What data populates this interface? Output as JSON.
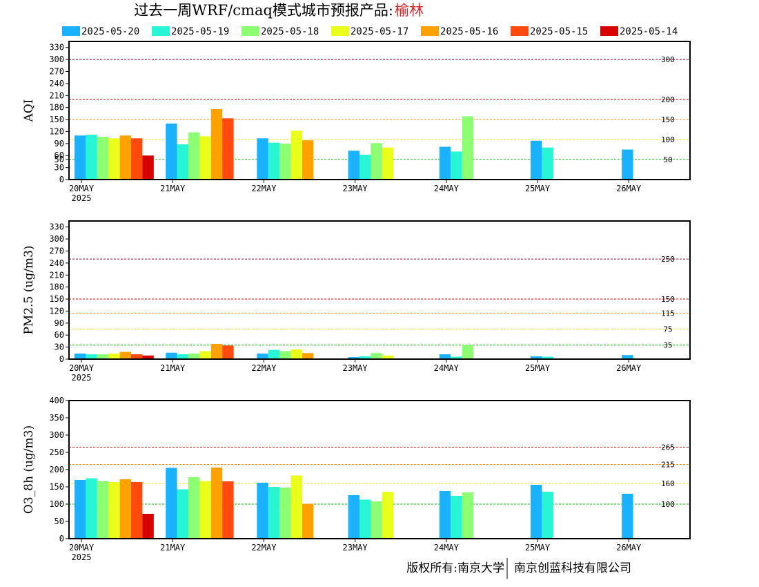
{
  "header": {
    "title": "过去一周WRF/cmaq模式城市预报产品:",
    "city": "榆林"
  },
  "footer": {
    "left": "版权所有:南京大学",
    "right": "南京创蓝科技有限公司"
  },
  "legend": [
    {
      "label": "2025-05-20",
      "color": "#1ab2ff"
    },
    {
      "label": "2025-05-19",
      "color": "#26f5d6"
    },
    {
      "label": "2025-05-18",
      "color": "#8cff72"
    },
    {
      "label": "2025-05-17",
      "color": "#eaff1a"
    },
    {
      "label": "2025-05-16",
      "color": "#ffa200"
    },
    {
      "label": "2025-05-15",
      "color": "#ff4a0d"
    },
    {
      "label": "2025-05-14",
      "color": "#d90000"
    }
  ],
  "chart_data": [
    {
      "type": "bar",
      "ylabel": "AQI",
      "ylim": [
        0,
        345
      ],
      "yticks": [
        0,
        30,
        50,
        60,
        90,
        120,
        150,
        180,
        210,
        240,
        270,
        300,
        330
      ],
      "categories": [
        "20MAY",
        "21MAY",
        "22MAY",
        "23MAY",
        "24MAY",
        "25MAY",
        "26MAY"
      ],
      "first_year": "2025",
      "ref_lines": [
        {
          "value": 50,
          "label": "50",
          "color": "#00c000"
        },
        {
          "value": 100,
          "label": "100",
          "color": "#e6e600"
        },
        {
          "value": 150,
          "label": "150",
          "color": "#ff8c00"
        },
        {
          "value": 200,
          "label": "200",
          "color": "#d90000"
        },
        {
          "value": 300,
          "label": "300",
          "color": "#9b0040"
        }
      ],
      "series": [
        {
          "name": "2025-05-20",
          "values": [
            110,
            140,
            103,
            72,
            82,
            97,
            75
          ]
        },
        {
          "name": "2025-05-19",
          "values": [
            112,
            88,
            92,
            62,
            70,
            80,
            null
          ]
        },
        {
          "name": "2025-05-18",
          "values": [
            107,
            118,
            90,
            91,
            158,
            null,
            null
          ]
        },
        {
          "name": "2025-05-17",
          "values": [
            103,
            108,
            122,
            80,
            null,
            null,
            null
          ]
        },
        {
          "name": "2025-05-16",
          "values": [
            110,
            176,
            98,
            null,
            null,
            null,
            null
          ]
        },
        {
          "name": "2025-05-15",
          "values": [
            103,
            153,
            null,
            null,
            null,
            null,
            null
          ]
        },
        {
          "name": "2025-05-14",
          "values": [
            60,
            null,
            null,
            null,
            null,
            null,
            null
          ]
        }
      ]
    },
    {
      "type": "bar",
      "ylabel": "PM2.5 (ug/m3)",
      "ylim": [
        0,
        345
      ],
      "yticks": [
        0,
        30,
        60,
        90,
        120,
        150,
        180,
        210,
        240,
        270,
        300,
        330
      ],
      "categories": [
        "20MAY",
        "21MAY",
        "22MAY",
        "23MAY",
        "24MAY",
        "25MAY",
        "26MAY"
      ],
      "first_year": "2025",
      "ref_lines": [
        {
          "value": 35,
          "label": "35",
          "color": "#00c000"
        },
        {
          "value": 75,
          "label": "75",
          "color": "#e6e600"
        },
        {
          "value": 115,
          "label": "115",
          "color": "#ff8c00"
        },
        {
          "value": 150,
          "label": "150",
          "color": "#d90000"
        },
        {
          "value": 250,
          "label": "250",
          "color": "#9b0040"
        }
      ],
      "series": [
        {
          "name": "2025-05-20",
          "values": [
            14,
            16,
            14,
            5,
            12,
            7,
            10
          ]
        },
        {
          "name": "2025-05-19",
          "values": [
            12,
            12,
            23,
            7,
            6,
            6,
            null
          ]
        },
        {
          "name": "2025-05-18",
          "values": [
            12,
            14,
            20,
            15,
            35,
            null,
            null
          ]
        },
        {
          "name": "2025-05-17",
          "values": [
            14,
            20,
            24,
            9,
            null,
            null,
            null
          ]
        },
        {
          "name": "2025-05-16",
          "values": [
            18,
            38,
            15,
            null,
            null,
            null,
            null
          ]
        },
        {
          "name": "2025-05-15",
          "values": [
            12,
            34,
            null,
            null,
            null,
            null,
            null
          ]
        },
        {
          "name": "2025-05-14",
          "values": [
            9,
            null,
            null,
            null,
            null,
            null,
            null
          ]
        }
      ]
    },
    {
      "type": "bar",
      "ylabel": "O3_8h (ug/m3)",
      "ylim": [
        0,
        400
      ],
      "yticks": [
        0,
        50,
        100,
        150,
        200,
        250,
        300,
        350,
        400
      ],
      "categories": [
        "20MAY",
        "21MAY",
        "22MAY",
        "23MAY",
        "24MAY",
        "25MAY",
        "26MAY"
      ],
      "first_year": "2025",
      "ref_lines": [
        {
          "value": 100,
          "label": "100",
          "color": "#00c000"
        },
        {
          "value": 160,
          "label": "160",
          "color": "#e6e600"
        },
        {
          "value": 215,
          "label": "215",
          "color": "#ff8c00"
        },
        {
          "value": 265,
          "label": "265",
          "color": "#d90000"
        }
      ],
      "series": [
        {
          "name": "2025-05-20",
          "values": [
            170,
            205,
            162,
            126,
            138,
            156,
            130
          ]
        },
        {
          "name": "2025-05-19",
          "values": [
            175,
            143,
            150,
            113,
            124,
            136,
            null
          ]
        },
        {
          "name": "2025-05-18",
          "values": [
            167,
            178,
            148,
            108,
            134,
            null,
            null
          ]
        },
        {
          "name": "2025-05-17",
          "values": [
            164,
            167,
            183,
            136,
            null,
            null,
            null
          ]
        },
        {
          "name": "2025-05-16",
          "values": [
            172,
            206,
            101,
            null,
            null,
            null,
            null
          ]
        },
        {
          "name": "2025-05-15",
          "values": [
            164,
            166,
            null,
            null,
            null,
            null,
            null
          ]
        },
        {
          "name": "2025-05-14",
          "values": [
            72,
            null,
            null,
            null,
            null,
            null,
            null
          ]
        }
      ]
    }
  ]
}
